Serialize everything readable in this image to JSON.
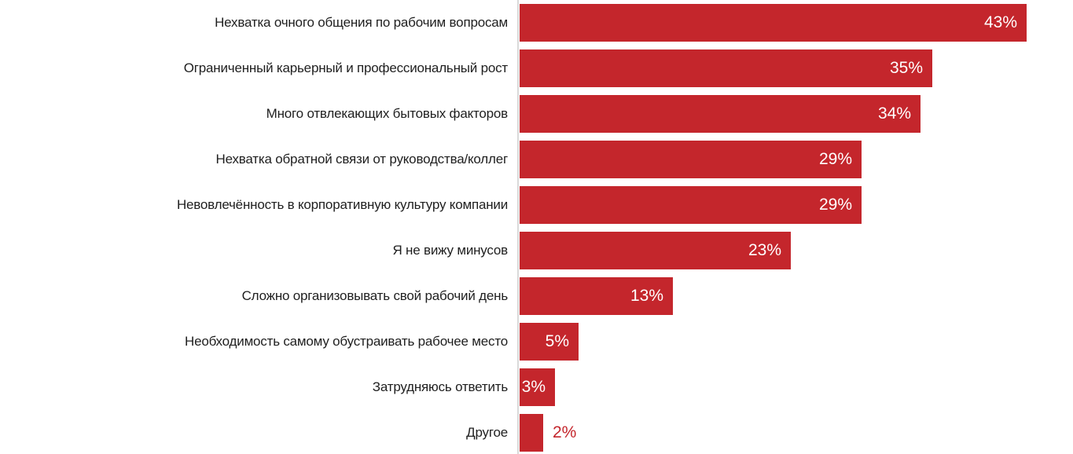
{
  "chart_data": {
    "type": "bar",
    "orientation": "horizontal",
    "title": "",
    "xlabel": "",
    "ylabel": "",
    "xlim": [
      0,
      43
    ],
    "grid": false,
    "legend": false,
    "bar_color": "#c4262c",
    "axis_line_color": "#d9d9d9",
    "category_label_color": "#1f1f1f",
    "value_label_color_inside": "#ffffff",
    "value_label_color_outside": "#c4262c",
    "value_suffix": "%",
    "categories": [
      "Нехватка очного общения по рабочим вопросам",
      "Ограниченный карьерный и профессиональный рост",
      "Много отвлекающих бытовых факторов",
      "Нехватка обратной связи от руководства/коллег",
      "Невовлечённость в корпоративную культуру компании",
      "Я не вижу минусов",
      "Сложно организовывать свой рабочий день",
      "Необходимость самому обустраивать рабочее место",
      "Затрудняюсь ответить",
      "Другое"
    ],
    "values": [
      43,
      35,
      34,
      29,
      29,
      23,
      13,
      5,
      3,
      2
    ],
    "bars": [
      {
        "label": "Нехватка очного общения по рабочим вопросам",
        "value": 43,
        "value_label": "43%",
        "value_label_inside": true
      },
      {
        "label": "Ограниченный карьерный и профессиональный рост",
        "value": 35,
        "value_label": "35%",
        "value_label_inside": true
      },
      {
        "label": "Много отвлекающих бытовых факторов",
        "value": 34,
        "value_label": "34%",
        "value_label_inside": true
      },
      {
        "label": "Нехватка обратной связи от руководства/коллег",
        "value": 29,
        "value_label": "29%",
        "value_label_inside": true
      },
      {
        "label": "Невовлечённость в корпоративную культуру компании",
        "value": 29,
        "value_label": "29%",
        "value_label_inside": true
      },
      {
        "label": "Я не вижу минусов",
        "value": 23,
        "value_label": "23%",
        "value_label_inside": true
      },
      {
        "label": "Сложно организовывать свой рабочий день",
        "value": 13,
        "value_label": "13%",
        "value_label_inside": true
      },
      {
        "label": "Необходимость самому обустраивать рабочее место",
        "value": 5,
        "value_label": "5%",
        "value_label_inside": true
      },
      {
        "label": "Затрудняюсь ответить",
        "value": 3,
        "value_label": "3%",
        "value_label_inside": true
      },
      {
        "label": "Другое",
        "value": 2,
        "value_label": "2%",
        "value_label_inside": false
      }
    ]
  }
}
